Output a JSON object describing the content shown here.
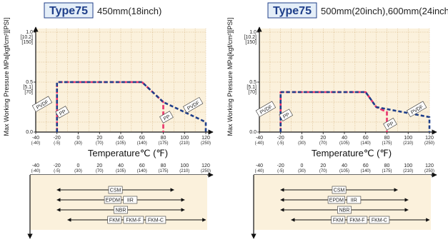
{
  "chart_data": [
    {
      "type": "line",
      "badge": "Type75",
      "size": "450mm(18inch)",
      "xlabel": "Temperature℃ (℉)",
      "ylabel": "Max Working Pressure MPa[kgf/cm²][PSI]",
      "xlim": [
        -40,
        120
      ],
      "ylim": [
        0,
        1.0
      ],
      "xticks": [
        {
          "v": -40,
          "c": "-40",
          "f": "(-40)"
        },
        {
          "v": -20,
          "c": "-20",
          "f": "(-5)"
        },
        {
          "v": 0,
          "c": "0",
          "f": "(30)"
        },
        {
          "v": 20,
          "c": "20",
          "f": "(70)"
        },
        {
          "v": 40,
          "c": "40",
          "f": "(105)"
        },
        {
          "v": 60,
          "c": "60",
          "f": "(140)"
        },
        {
          "v": 80,
          "c": "80",
          "f": "(175)"
        },
        {
          "v": 100,
          "c": "100",
          "f": "(210)"
        },
        {
          "v": 120,
          "c": "120",
          "f": "(250)"
        }
      ],
      "yticks": [
        {
          "v": 1.0,
          "lines": [
            "1.0",
            "[10.2]",
            "[150]"
          ]
        },
        {
          "v": 0.5,
          "lines": [
            "0.5",
            "[5.1]",
            "[70]"
          ]
        },
        {
          "v": 0.0,
          "lines": [
            "0.0"
          ]
        }
      ],
      "series": [
        {
          "name": "PP",
          "color": "#e8336b",
          "dash": "6,3",
          "x": [
            -20,
            -20,
            60,
            80,
            80
          ],
          "y": [
            0,
            0.5,
            0.5,
            0.3,
            0
          ]
        },
        {
          "name": "PVDF",
          "color": "#1f3f8a",
          "dash": "5,3",
          "x": [
            -20,
            -20,
            60,
            80,
            120,
            120
          ],
          "y": [
            0,
            0.5,
            0.5,
            0.3,
            0.1,
            0
          ]
        }
      ],
      "labels": [
        {
          "text": "PVDF",
          "x": -34,
          "y": 0.28
        },
        {
          "text": "PP",
          "x": -15,
          "y": 0.2
        },
        {
          "text": "PP",
          "x": 83,
          "y": 0.15
        },
        {
          "text": "PVDF",
          "x": 108,
          "y": 0.27
        }
      ],
      "ranges": [
        {
          "items": [
            "CSM"
          ],
          "x": [
            -20,
            90
          ]
        },
        {
          "items": [
            "EPDM",
            "IIR"
          ],
          "x": [
            -20,
            100
          ]
        },
        {
          "items": [
            "NBR"
          ],
          "x": [
            -20,
            100
          ]
        },
        {
          "items": [
            "FKM",
            "FKM-F",
            "FKM-C"
          ],
          "x": [
            -10,
            120
          ]
        }
      ]
    },
    {
      "type": "line",
      "badge": "Type75",
      "size": "500mm(20inch),600mm(24inch)",
      "xlabel": "Temperature℃ (℉)",
      "ylabel": "Max Working Pressure MPa[kgf/cm²][PSI]",
      "xlim": [
        -40,
        120
      ],
      "ylim": [
        0,
        1.0
      ],
      "xticks": [
        {
          "v": -40,
          "c": "-40",
          "f": "(-40)"
        },
        {
          "v": -20,
          "c": "-20",
          "f": "(-5)"
        },
        {
          "v": 0,
          "c": "0",
          "f": "(30)"
        },
        {
          "v": 20,
          "c": "20",
          "f": "(70)"
        },
        {
          "v": 40,
          "c": "40",
          "f": "(105)"
        },
        {
          "v": 60,
          "c": "60",
          "f": "(140)"
        },
        {
          "v": 80,
          "c": "80",
          "f": "(175)"
        },
        {
          "v": 100,
          "c": "100",
          "f": "(210)"
        },
        {
          "v": 120,
          "c": "120",
          "f": "(250)"
        }
      ],
      "yticks": [
        {
          "v": 1.0,
          "lines": [
            "1.0",
            "[10.2]",
            "[150]"
          ]
        },
        {
          "v": 0.5,
          "lines": [
            "0.5",
            "[5.1]",
            "[70]"
          ]
        },
        {
          "v": 0.0,
          "lines": [
            "0.0"
          ]
        }
      ],
      "series": [
        {
          "name": "PP",
          "color": "#e8336b",
          "dash": "6,3",
          "x": [
            -20,
            -20,
            60,
            70,
            80,
            80
          ],
          "y": [
            0,
            0.4,
            0.4,
            0.25,
            0.2,
            0
          ]
        },
        {
          "name": "PVDF",
          "color": "#1f3f8a",
          "dash": "5,3",
          "x": [
            -20,
            -20,
            60,
            70,
            120,
            120
          ],
          "y": [
            0,
            0.4,
            0.4,
            0.25,
            0.15,
            0
          ]
        }
      ],
      "labels": [
        {
          "text": "PVDF",
          "x": -34,
          "y": 0.23
        },
        {
          "text": "PP",
          "x": -15,
          "y": 0.17
        },
        {
          "text": "PP",
          "x": 83,
          "y": 0.08
        },
        {
          "text": "PVDF",
          "x": 108,
          "y": 0.23
        }
      ],
      "ranges": [
        {
          "items": [
            "CSM"
          ],
          "x": [
            -20,
            90
          ]
        },
        {
          "items": [
            "EPDM",
            "IIR"
          ],
          "x": [
            -20,
            100
          ]
        },
        {
          "items": [
            "NBR"
          ],
          "x": [
            -20,
            100
          ]
        },
        {
          "items": [
            "FKM",
            "FKM-F",
            "FKM-C"
          ],
          "x": [
            -10,
            120
          ]
        }
      ]
    }
  ]
}
